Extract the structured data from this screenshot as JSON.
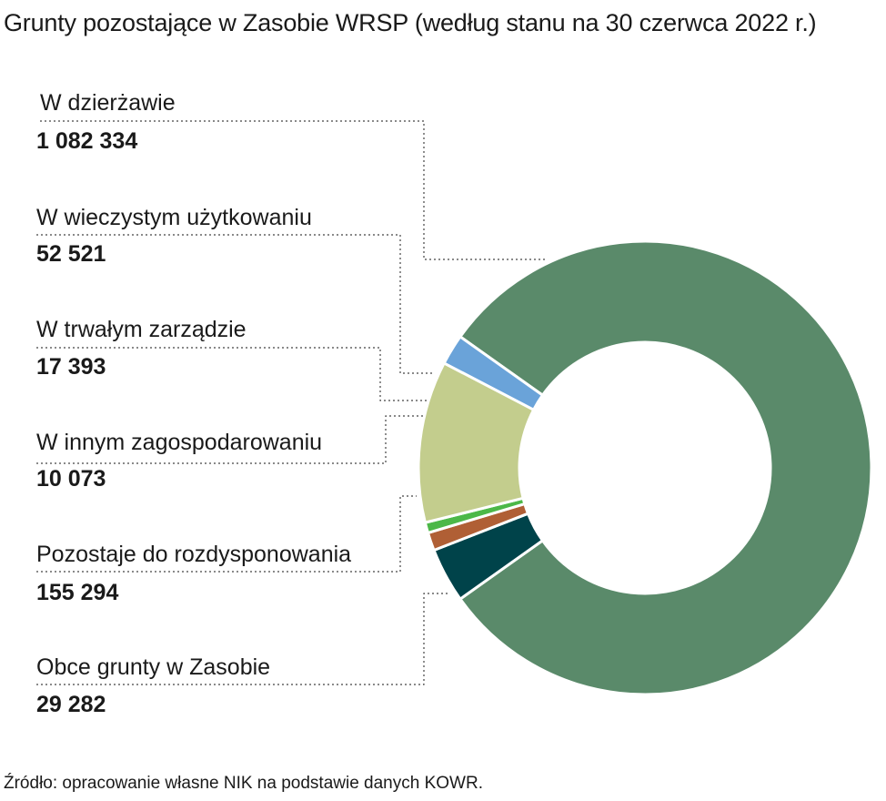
{
  "title": "Grunty pozostające w Zasobie WRSP (według stanu na 30 czerwca 2022 r.)",
  "source": "Źródło: opracowanie własne NIK na podstawie danych KOWR.",
  "chart_data": {
    "type": "pie",
    "variant": "donut",
    "title": "Grunty pozostające w Zasobie WRSP (według stanu na 30 czerwca 2022 r.)",
    "categories": [
      "W dzierżawie",
      "W wieczystym użytkowaniu",
      "W trwałym zarządzie",
      "W innym zagospodarowaniu",
      "Pozostaje do rozdysponowania",
      "Obce grunty w Zasobie"
    ],
    "values": [
      1082334,
      52521,
      17393,
      10073,
      155294,
      29282
    ],
    "value_labels": [
      "1 082 334",
      "52 521",
      "17 393",
      "10 073",
      "155 294",
      "29 282"
    ],
    "colors": [
      "#5a8a6a",
      "#00434a",
      "#b05f35",
      "#4cb848",
      "#c3cd8d",
      "#6aa3d9"
    ]
  }
}
